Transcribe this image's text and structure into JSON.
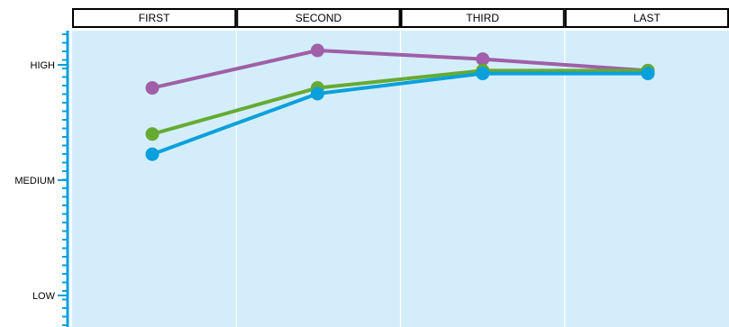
{
  "chart_data": {
    "type": "line",
    "categories": [
      "FIRST",
      "SECOND",
      "THIRD",
      "LAST"
    ],
    "y_tick_labels": [
      {
        "label": "HIGH",
        "value": 0.9
      },
      {
        "label": "MEDIUM",
        "value": 0.5
      },
      {
        "label": "LOW",
        "value": 0.1
      }
    ],
    "ylim": [
      0.0,
      1.0
    ],
    "grid": "vertical",
    "legend": "none",
    "series": [
      {
        "color": "#a05fa8",
        "values": [
          0.82,
          0.95,
          0.92,
          0.88
        ]
      },
      {
        "color": "#66aa33",
        "values": [
          0.66,
          0.82,
          0.88,
          0.88
        ]
      },
      {
        "color": "#0aa0dc",
        "values": [
          0.59,
          0.8,
          0.87,
          0.87
        ]
      }
    ],
    "colors": {
      "plot_background": "#d3eefa",
      "axis": "#0aa0dc",
      "grid": "#ffffff",
      "header_border": "#000000"
    }
  }
}
